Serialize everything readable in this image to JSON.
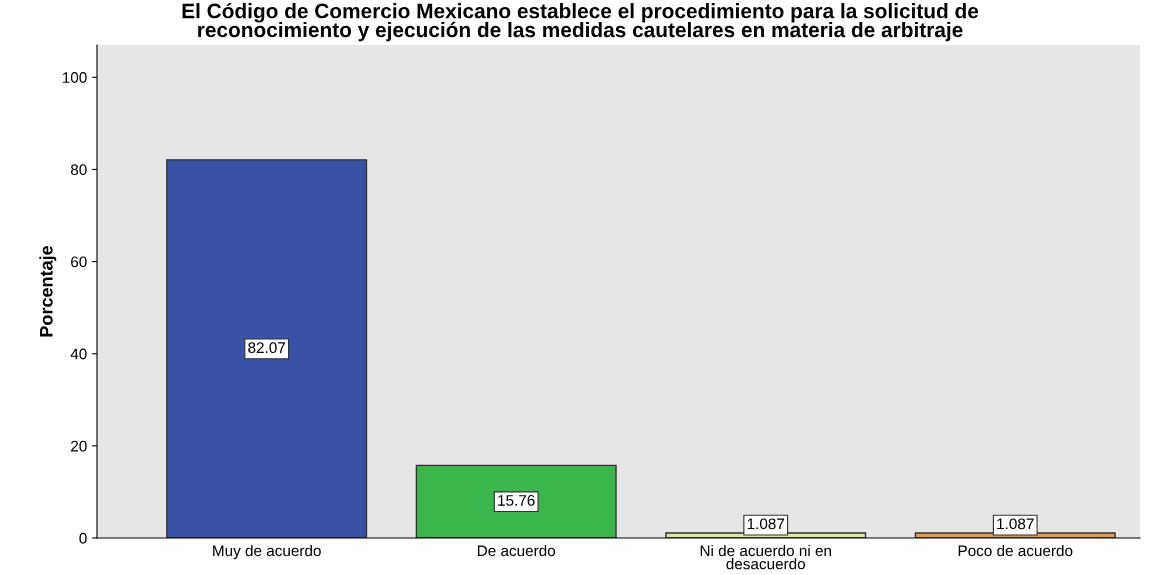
{
  "chart_data": {
    "type": "bar",
    "title": "El Código de Comercio Mexicano establece el procedimiento para la solicitud de\nreconocimiento y ejecución de las medidas cautelares en materia de arbitraje",
    "ylabel": "Porcentaje",
    "categories": [
      "Muy de acuerdo",
      "De acuerdo",
      "Ni de acuerdo ni en\ndesacuerdo",
      "Poco de acuerdo"
    ],
    "values": [
      82.07,
      15.76,
      1.087,
      1.087
    ],
    "colors": [
      "#3a52a6",
      "#3cb54a",
      "#dfe8a3",
      "#e59a52"
    ],
    "ylim": [
      0,
      107
    ],
    "yticks": [
      0,
      20,
      40,
      60,
      80,
      100
    ],
    "grid": false,
    "data_labels": true
  }
}
